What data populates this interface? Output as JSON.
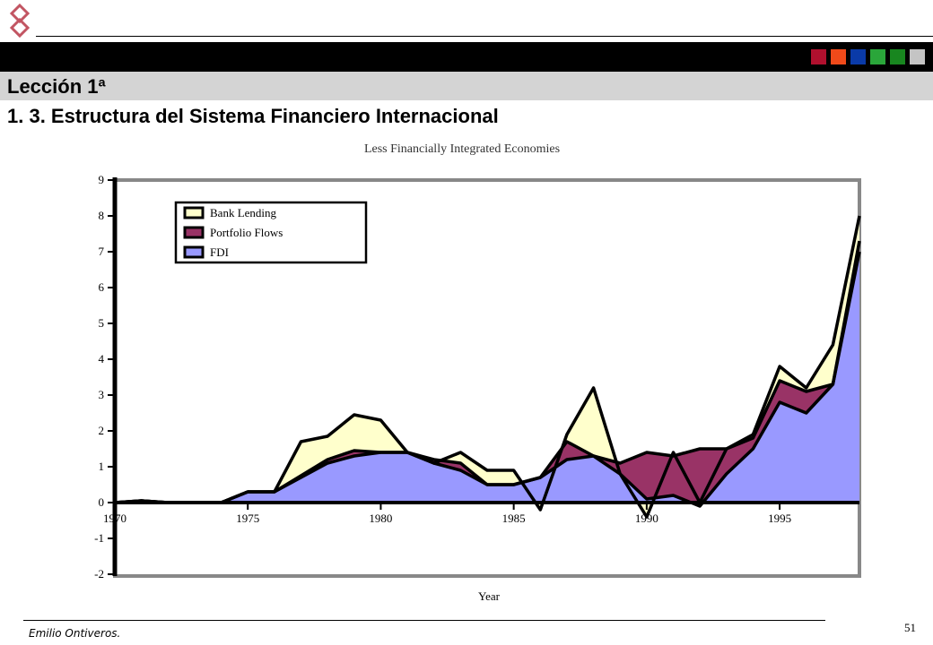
{
  "slide": {
    "lesson": "Lección 1ª",
    "subtitle": "1. 3.  Estructura del Sistema Financiero Internacional",
    "author": "Emilio Ontiveros.",
    "page_number": "51",
    "logo_icon": "interlocked-rings-logo-icon",
    "header_squares": [
      "#b0102e",
      "#f04a1a",
      "#0a3aa8",
      "#2aa63a",
      "#18861f",
      "#c4c4c4"
    ]
  },
  "chart_data": {
    "type": "area",
    "stacked": true,
    "title": "Less Financially Integrated Economies",
    "xlabel": "Year",
    "ylabel": "",
    "ylim": [
      -2,
      9
    ],
    "xlim": [
      1970,
      1998
    ],
    "x_ticks": [
      1970,
      1975,
      1980,
      1985,
      1990,
      1995
    ],
    "x_tick_labels": [
      "1970",
      "1975",
      "1980",
      "1985",
      "1990",
      "1995"
    ],
    "y_ticks": [
      9,
      8,
      7,
      6,
      5,
      4,
      3,
      2,
      1,
      0,
      -1,
      -2
    ],
    "y_tick_labels": [
      "9",
      "8",
      "7",
      "6",
      "5",
      "4",
      "3",
      "2",
      "1",
      "0",
      "-1",
      "-2"
    ],
    "legend_position": "top-left",
    "grid": false,
    "x": [
      1970,
      1971,
      1972,
      1973,
      1974,
      1975,
      1976,
      1977,
      1978,
      1979,
      1980,
      1981,
      1982,
      1983,
      1984,
      1985,
      1986,
      1987,
      1988,
      1989,
      1990,
      1991,
      1992,
      1993,
      1994,
      1995,
      1996,
      1997,
      1998
    ],
    "series": [
      {
        "name": "FDI",
        "color": "#9999ff",
        "values": [
          0,
          0.05,
          0,
          0,
          0,
          0.3,
          0.3,
          0.7,
          1.1,
          1.3,
          1.4,
          1.4,
          1.1,
          0.9,
          0.5,
          0.5,
          0.7,
          1.2,
          1.3,
          0.8,
          0.1,
          0.2,
          -0.1,
          0.8,
          1.5,
          2.8,
          2.5,
          3.3,
          7.0
        ]
      },
      {
        "name": "Portfolio Flows",
        "color": "#993366",
        "values": [
          0,
          0,
          0,
          0,
          0,
          0,
          0,
          0.05,
          0.1,
          0.15,
          0,
          0,
          0.1,
          0.2,
          0,
          0,
          0,
          0.5,
          0,
          0.3,
          1.3,
          1.1,
          1.6,
          0.7,
          0.3,
          0.6,
          0.6,
          0,
          0.3
        ]
      },
      {
        "name": "Bank Lending",
        "color": "#ffffcc",
        "values": [
          0,
          0,
          0,
          0,
          0,
          0,
          0,
          0.95,
          0.65,
          1.0,
          0.9,
          0,
          -0.1,
          0.3,
          0.4,
          0.4,
          -0.9,
          0.2,
          1.9,
          -0.3,
          -1.8,
          0.1,
          -1.5,
          0,
          0.1,
          0.4,
          0.1,
          1.1,
          0.7
        ]
      }
    ]
  }
}
